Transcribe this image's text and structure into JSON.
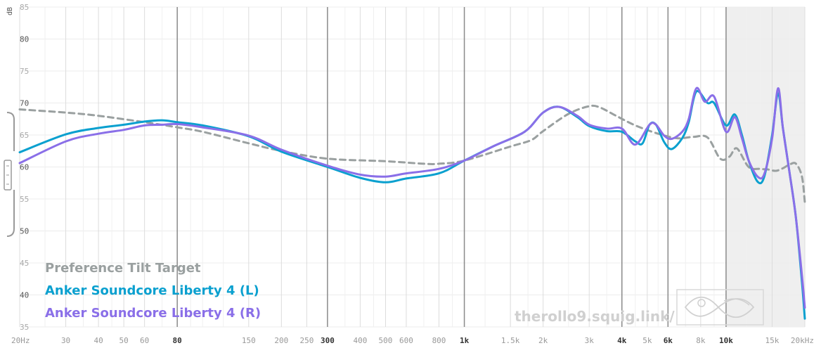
{
  "chart_data": {
    "type": "line",
    "title": "",
    "xlabel": "",
    "ylabel": "dB",
    "x_scale": "log",
    "xlim": [
      20,
      20000
    ],
    "ylim": [
      35,
      85
    ],
    "y_ticks": [
      {
        "value": 85,
        "label": "85",
        "strong": false
      },
      {
        "value": 80,
        "label": "80",
        "strong": true
      },
      {
        "value": 75,
        "label": "75",
        "strong": false
      },
      {
        "value": 70,
        "label": "70",
        "strong": true
      },
      {
        "value": 65,
        "label": "65",
        "strong": false
      },
      {
        "value": 60,
        "label": "60",
        "strong": true
      },
      {
        "value": 55,
        "label": "55",
        "strong": false
      },
      {
        "value": 50,
        "label": "50",
        "strong": true
      },
      {
        "value": 45,
        "label": "45",
        "strong": false
      },
      {
        "value": 40,
        "label": "40",
        "strong": true
      },
      {
        "value": 35,
        "label": "35",
        "strong": false
      }
    ],
    "x_ticks": [
      {
        "value": 20,
        "label": "20Hz",
        "major": false
      },
      {
        "value": 30,
        "label": "30",
        "major": false
      },
      {
        "value": 40,
        "label": "40",
        "major": false
      },
      {
        "value": 50,
        "label": "50",
        "major": false
      },
      {
        "value": 60,
        "label": "60",
        "major": false
      },
      {
        "value": 80,
        "label": "80",
        "major": true
      },
      {
        "value": 150,
        "label": "150",
        "major": false
      },
      {
        "value": 200,
        "label": "200",
        "major": false
      },
      {
        "value": 250,
        "label": "250",
        "major": false
      },
      {
        "value": 300,
        "label": "300",
        "major": true
      },
      {
        "value": 400,
        "label": "400",
        "major": false
      },
      {
        "value": 500,
        "label": "500",
        "major": false
      },
      {
        "value": 600,
        "label": "600",
        "major": false
      },
      {
        "value": 800,
        "label": "800",
        "major": false
      },
      {
        "value": 1000,
        "label": "1k",
        "major": true
      },
      {
        "value": 1500,
        "label": "1.5k",
        "major": false
      },
      {
        "value": 2000,
        "label": "2k",
        "major": false
      },
      {
        "value": 3000,
        "label": "3k",
        "major": false
      },
      {
        "value": 4000,
        "label": "4k",
        "major": true
      },
      {
        "value": 5000,
        "label": "5k",
        "major": false
      },
      {
        "value": 6000,
        "label": "6k",
        "major": true
      },
      {
        "value": 8000,
        "label": "8k",
        "major": false
      },
      {
        "value": 10000,
        "label": "10k",
        "major": true
      },
      {
        "value": 15000,
        "label": "15k",
        "major": false
      },
      {
        "value": 20000,
        "label": "20kHz",
        "major": false
      }
    ],
    "minor_grid": [
      25,
      35,
      45,
      70,
      90,
      100,
      120,
      350,
      450,
      700,
      900,
      1200,
      1750,
      2500,
      3500,
      4500,
      5500,
      7000,
      9000,
      12000,
      13500,
      17500
    ],
    "shaded_region": {
      "x_start": 10000,
      "x_end": 20000
    },
    "grid": true,
    "legend_position": "bottom-left",
    "series": [
      {
        "name": "Preference Tilt Target",
        "color": "#9aa0a0",
        "dashed": true,
        "points": [
          [
            20,
            69
          ],
          [
            30,
            68.5
          ],
          [
            40,
            68
          ],
          [
            60,
            67
          ],
          [
            80,
            66.2
          ],
          [
            100,
            65.5
          ],
          [
            150,
            63.7
          ],
          [
            200,
            62.5
          ],
          [
            300,
            61.3
          ],
          [
            500,
            60.9
          ],
          [
            700,
            60.5
          ],
          [
            800,
            60.5
          ],
          [
            1000,
            61
          ],
          [
            1500,
            63.2
          ],
          [
            1800,
            64.2
          ],
          [
            2000,
            65.6
          ],
          [
            2500,
            68.3
          ],
          [
            3000,
            69.5
          ],
          [
            3300,
            69.3
          ],
          [
            3800,
            68
          ],
          [
            4500,
            66.5
          ],
          [
            5500,
            65.2
          ],
          [
            6500,
            64.5
          ],
          [
            7500,
            64.7
          ],
          [
            8500,
            64.6
          ],
          [
            9500,
            61.3
          ],
          [
            10300,
            61.6
          ],
          [
            11000,
            62.9
          ],
          [
            12200,
            60
          ],
          [
            13500,
            59.7
          ],
          [
            14500,
            59.6
          ],
          [
            15500,
            59.4
          ],
          [
            16500,
            59.8
          ],
          [
            17500,
            60.4
          ],
          [
            18500,
            60.5
          ],
          [
            19500,
            58.5
          ],
          [
            20000,
            54.5
          ]
        ]
      },
      {
        "name": "Anker Soundcore Liberty 4 (L)",
        "color": "#0aa0cf",
        "dashed": false,
        "points": [
          [
            20,
            62.3
          ],
          [
            30,
            65.1
          ],
          [
            40,
            66.1
          ],
          [
            50,
            66.6
          ],
          [
            60,
            67.1
          ],
          [
            70,
            67.3
          ],
          [
            80,
            67
          ],
          [
            100,
            66.5
          ],
          [
            150,
            64.8
          ],
          [
            200,
            62.4
          ],
          [
            300,
            60
          ],
          [
            400,
            58.3
          ],
          [
            500,
            57.6
          ],
          [
            600,
            58.2
          ],
          [
            800,
            59
          ],
          [
            1000,
            61
          ],
          [
            1300,
            63.3
          ],
          [
            1700,
            65.5
          ],
          [
            2000,
            68.5
          ],
          [
            2300,
            69.4
          ],
          [
            2700,
            67.8
          ],
          [
            3000,
            66.4
          ],
          [
            3500,
            65.6
          ],
          [
            4000,
            65.5
          ],
          [
            4500,
            64
          ],
          [
            4800,
            63.7
          ],
          [
            5100,
            66.6
          ],
          [
            5400,
            66.6
          ],
          [
            5800,
            63.9
          ],
          [
            6200,
            62.8
          ],
          [
            6800,
            64.5
          ],
          [
            7200,
            67
          ],
          [
            7700,
            71.8
          ],
          [
            8500,
            70
          ],
          [
            9000,
            70
          ],
          [
            10000,
            66.5
          ],
          [
            10800,
            68.2
          ],
          [
            11500,
            65
          ],
          [
            12200,
            61
          ],
          [
            13200,
            57.7
          ],
          [
            14000,
            58.5
          ],
          [
            15000,
            65
          ],
          [
            15800,
            71.5
          ],
          [
            16500,
            66
          ],
          [
            17500,
            59
          ],
          [
            18500,
            52
          ],
          [
            19500,
            42
          ],
          [
            20000,
            36.3
          ]
        ]
      },
      {
        "name": "Anker Soundcore Liberty 4 (R)",
        "color": "#8a6fe8",
        "dashed": false,
        "points": [
          [
            20,
            60.6
          ],
          [
            30,
            64
          ],
          [
            40,
            65.2
          ],
          [
            50,
            65.8
          ],
          [
            60,
            66.5
          ],
          [
            70,
            66.6
          ],
          [
            80,
            66.7
          ],
          [
            100,
            66.2
          ],
          [
            150,
            64.9
          ],
          [
            200,
            62.7
          ],
          [
            300,
            60.2
          ],
          [
            400,
            58.8
          ],
          [
            500,
            58.5
          ],
          [
            600,
            59
          ],
          [
            800,
            59.7
          ],
          [
            1000,
            61
          ],
          [
            1300,
            63.3
          ],
          [
            1700,
            65.5
          ],
          [
            2000,
            68.5
          ],
          [
            2300,
            69.4
          ],
          [
            2700,
            68
          ],
          [
            3000,
            66.6
          ],
          [
            3500,
            66
          ],
          [
            4000,
            66
          ],
          [
            4500,
            63.5
          ],
          [
            5100,
            66.6
          ],
          [
            5400,
            66.6
          ],
          [
            5800,
            64.9
          ],
          [
            6200,
            64.4
          ],
          [
            6800,
            65.5
          ],
          [
            7200,
            67.5
          ],
          [
            7700,
            72.3
          ],
          [
            8300,
            70.2
          ],
          [
            9000,
            71
          ],
          [
            10000,
            65.5
          ],
          [
            10800,
            67.8
          ],
          [
            11500,
            64.5
          ],
          [
            12200,
            61
          ],
          [
            13200,
            58.5
          ],
          [
            14000,
            58.9
          ],
          [
            15000,
            64.5
          ],
          [
            15800,
            72.3
          ],
          [
            16500,
            66
          ],
          [
            17500,
            59
          ],
          [
            18500,
            52
          ],
          [
            19500,
            43
          ],
          [
            20000,
            38
          ]
        ]
      }
    ],
    "watermark_text": "therollo9.squig.link/"
  }
}
